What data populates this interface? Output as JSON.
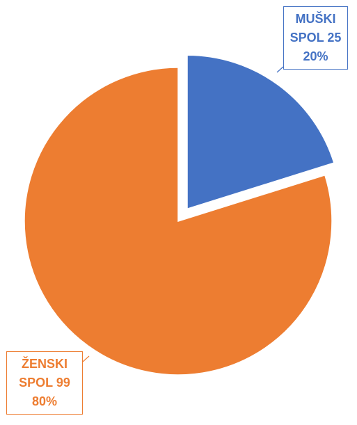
{
  "chart_data": {
    "type": "pie",
    "categories": [
      "MUŠKI SPOL",
      "ŽENSKI SPOL"
    ],
    "values": [
      25,
      99
    ],
    "percent_labels": [
      "20%",
      "80%"
    ],
    "colors": [
      "#4472c4",
      "#ed7d31"
    ]
  }
}
